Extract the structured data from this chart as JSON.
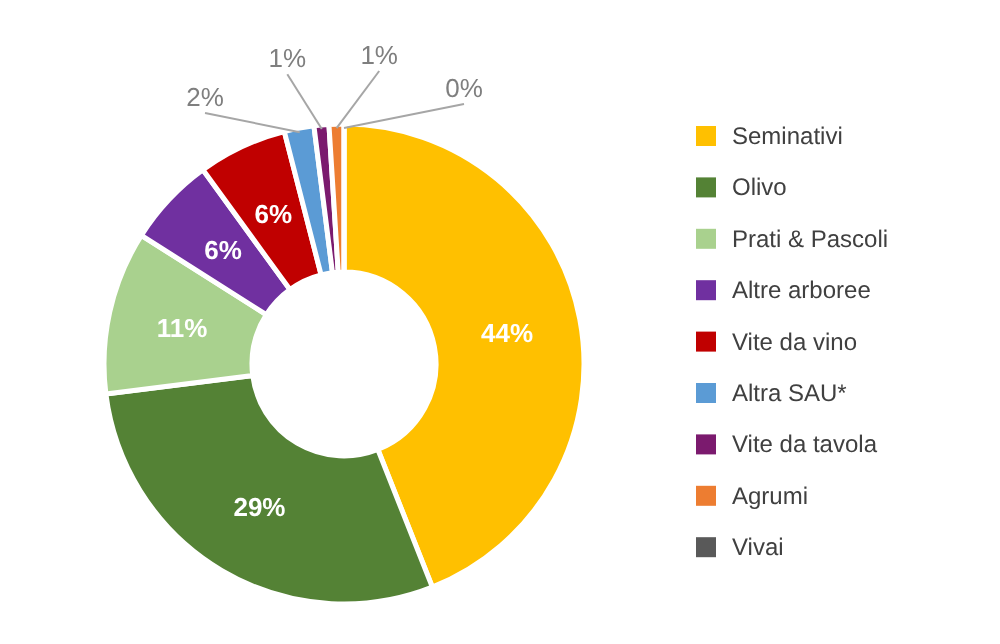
{
  "chart_data": {
    "type": "donut",
    "categories": [
      "Seminativi",
      "Olivo",
      "Prati & Pascoli",
      "Altre arboree",
      "Vite da vino",
      "Altra SAU*",
      "Vite da tavola",
      "Agrumi",
      "Vivai"
    ],
    "values": [
      44,
      29,
      11,
      6,
      6,
      2,
      1,
      1,
      0
    ],
    "value_labels": [
      "44%",
      "29%",
      "11%",
      "6%",
      "6%",
      "2%",
      "1%",
      "1%",
      "0%"
    ],
    "colors": [
      "#ffc000",
      "#548235",
      "#a9d18e",
      "#7030a0",
      "#c00000",
      "#5b9bd5",
      "#7b1a6e",
      "#ed7d31",
      "#595959"
    ],
    "legend": "right"
  }
}
